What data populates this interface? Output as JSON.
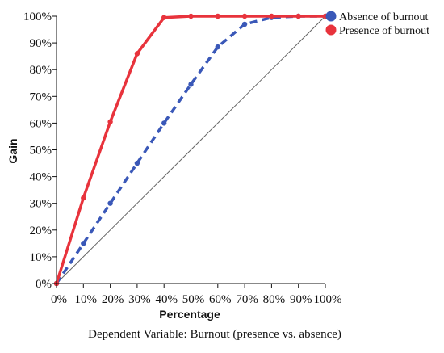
{
  "chart_data": {
    "type": "line",
    "x": [
      0,
      10,
      20,
      30,
      40,
      50,
      60,
      70,
      80,
      90,
      100
    ],
    "series": [
      {
        "name": "Absence of burnout",
        "color": "#3a58b8",
        "style": "dashed",
        "values": [
          0,
          15,
          30,
          45,
          60,
          74.5,
          88.5,
          97,
          99.5,
          100,
          100
        ]
      },
      {
        "name": "Presence of burnout",
        "color": "#e8333c",
        "style": "solid",
        "values": [
          0,
          32,
          60.5,
          86,
          99.5,
          100,
          100,
          100,
          100,
          100,
          100
        ]
      },
      {
        "name": "",
        "color": "#666666",
        "style": "thin",
        "values": [
          0,
          10,
          20,
          30,
          40,
          50,
          60,
          70,
          80,
          90,
          100
        ]
      }
    ],
    "xlabel": "Percentage",
    "ylabel": "Gain",
    "xlim": [
      0,
      100
    ],
    "ylim": [
      0,
      100
    ],
    "x_ticks": [
      "0%",
      "10%",
      "20%",
      "30%",
      "40%",
      "50%",
      "60%",
      "70%",
      "80%",
      "90%",
      "100%"
    ],
    "y_ticks": [
      "0%",
      "10%",
      "20%",
      "30%",
      "40%",
      "50%",
      "60%",
      "70%",
      "80%",
      "90%",
      "100%"
    ],
    "legend_position": "top-right",
    "grid": false,
    "caption": "Dependent Variable: Burnout (presence vs. absence)"
  }
}
